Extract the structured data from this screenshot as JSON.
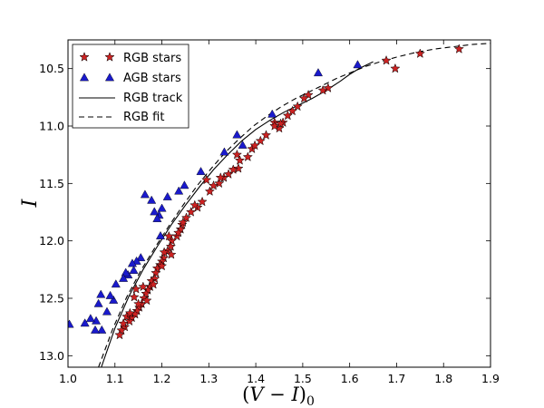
{
  "chart_data": {
    "type": "scatter",
    "xlabel_parts": [
      "(",
      "V",
      " − ",
      "I",
      ")",
      "0"
    ],
    "ylabel": "I",
    "xlim": [
      1.0,
      1.9
    ],
    "ylim": [
      10.25,
      13.1
    ],
    "y_inverted": true,
    "xticks": [
      1.0,
      1.1,
      1.2,
      1.3,
      1.4,
      1.5,
      1.6,
      1.7,
      1.8,
      1.9
    ],
    "xtick_labels": [
      "1.0",
      "1.1",
      "1.2",
      "1.3",
      "1.4",
      "1.5",
      "1.6",
      "1.7",
      "1.8",
      "1.9"
    ],
    "yticks": [
      10.5,
      11.0,
      11.5,
      12.0,
      12.5,
      13.0
    ],
    "ytick_labels": [
      "10.5",
      "11.0",
      "11.5",
      "12.0",
      "12.5",
      "13.0"
    ],
    "legend_position": "top-left",
    "legend": [
      {
        "label": "RGB stars",
        "marker": "star"
      },
      {
        "label": "AGB stars",
        "marker": "triangle"
      },
      {
        "label": "RGB track",
        "marker": "solid-line"
      },
      {
        "label": "RGB fit",
        "marker": "dashed-line"
      }
    ],
    "series": [
      {
        "name": "RGB stars",
        "kind": "scatter",
        "marker": "star",
        "color": "#cc2222",
        "points": [
          [
            1.833,
            10.33
          ],
          [
            1.75,
            10.37
          ],
          [
            1.697,
            10.5
          ],
          [
            1.678,
            10.43
          ],
          [
            1.554,
            10.67
          ],
          [
            1.543,
            10.69
          ],
          [
            1.512,
            10.73
          ],
          [
            1.503,
            10.76
          ],
          [
            1.489,
            10.83
          ],
          [
            1.478,
            10.87
          ],
          [
            1.468,
            10.91
          ],
          [
            1.458,
            10.97
          ],
          [
            1.45,
            11.02
          ],
          [
            1.44,
            10.97
          ],
          [
            1.44,
            11.0
          ],
          [
            1.422,
            11.08
          ],
          [
            1.41,
            11.13
          ],
          [
            1.392,
            11.2
          ],
          [
            1.383,
            11.27
          ],
          [
            1.36,
            11.25
          ],
          [
            1.366,
            11.3
          ],
          [
            1.363,
            11.37
          ],
          [
            1.342,
            11.42
          ],
          [
            1.332,
            11.45
          ],
          [
            1.322,
            11.5
          ],
          [
            1.325,
            11.45
          ],
          [
            1.302,
            11.57
          ],
          [
            1.295,
            11.47
          ],
          [
            1.286,
            11.66
          ],
          [
            1.276,
            11.71
          ],
          [
            1.262,
            11.75
          ],
          [
            1.252,
            11.8
          ],
          [
            1.243,
            11.86
          ],
          [
            1.24,
            11.9
          ],
          [
            1.232,
            11.96
          ],
          [
            1.221,
            12.0
          ],
          [
            1.219,
            12.05
          ],
          [
            1.212,
            12.09
          ],
          [
            1.204,
            12.15
          ],
          [
            1.2,
            12.18
          ],
          [
            1.196,
            12.21
          ],
          [
            1.19,
            12.24
          ],
          [
            1.187,
            12.28
          ],
          [
            1.185,
            12.33
          ],
          [
            1.178,
            12.35
          ],
          [
            1.175,
            12.4
          ],
          [
            1.17,
            12.43
          ],
          [
            1.166,
            12.46
          ],
          [
            1.162,
            12.5
          ],
          [
            1.157,
            12.55
          ],
          [
            1.152,
            12.58
          ],
          [
            1.147,
            12.61
          ],
          [
            1.143,
            12.64
          ],
          [
            1.141,
            12.49
          ],
          [
            1.136,
            12.67
          ],
          [
            1.131,
            12.7
          ],
          [
            1.125,
            12.66
          ],
          [
            1.121,
            12.75
          ],
          [
            1.114,
            12.78
          ],
          [
            1.11,
            12.82
          ],
          [
            1.145,
            12.42
          ],
          [
            1.16,
            12.4
          ],
          [
            1.168,
            12.52
          ],
          [
            1.205,
            12.1
          ],
          [
            1.215,
            11.96
          ],
          [
            1.235,
            11.93
          ],
          [
            1.22,
            12.12
          ],
          [
            1.182,
            12.38
          ],
          [
            1.15,
            12.55
          ],
          [
            1.132,
            12.63
          ],
          [
            1.118,
            12.72
          ],
          [
            1.2,
            12.22
          ],
          [
            1.245,
            11.84
          ],
          [
            1.27,
            11.69
          ],
          [
            1.31,
            11.52
          ],
          [
            1.352,
            11.38
          ],
          [
            1.398,
            11.17
          ],
          [
            1.453,
            10.98
          ]
        ]
      },
      {
        "name": "AGB stars",
        "kind": "scatter",
        "marker": "triangle",
        "color": "#1a1acc",
        "points": [
          [
            1.617,
            10.47
          ],
          [
            1.533,
            10.54
          ],
          [
            1.435,
            10.9
          ],
          [
            1.372,
            11.17
          ],
          [
            1.36,
            11.08
          ],
          [
            1.333,
            11.23
          ],
          [
            1.283,
            11.4
          ],
          [
            1.248,
            11.52
          ],
          [
            1.236,
            11.57
          ],
          [
            1.212,
            11.62
          ],
          [
            1.2,
            11.72
          ],
          [
            1.194,
            11.78
          ],
          [
            1.184,
            11.75
          ],
          [
            1.178,
            11.65
          ],
          [
            1.164,
            11.6
          ],
          [
            1.19,
            11.81
          ],
          [
            1.197,
            11.96
          ],
          [
            1.155,
            12.15
          ],
          [
            1.146,
            12.18
          ],
          [
            1.137,
            12.2
          ],
          [
            1.14,
            12.26
          ],
          [
            1.128,
            12.3
          ],
          [
            1.123,
            12.28
          ],
          [
            1.118,
            12.33
          ],
          [
            1.102,
            12.38
          ],
          [
            1.097,
            12.52
          ],
          [
            1.09,
            12.48
          ],
          [
            1.083,
            12.62
          ],
          [
            1.07,
            12.47
          ],
          [
            1.065,
            12.55
          ],
          [
            1.06,
            12.7
          ],
          [
            1.048,
            12.68
          ],
          [
            1.072,
            12.78
          ],
          [
            1.058,
            12.78
          ],
          [
            1.036,
            12.72
          ],
          [
            1.003,
            12.73
          ]
        ]
      },
      {
        "name": "RGB track",
        "kind": "line",
        "style": "solid",
        "color": "#000000",
        "points": [
          [
            1.071,
            13.1
          ],
          [
            1.1,
            12.76
          ],
          [
            1.13,
            12.48
          ],
          [
            1.16,
            12.25
          ],
          [
            1.19,
            12.05
          ],
          [
            1.22,
            11.86
          ],
          [
            1.25,
            11.69
          ],
          [
            1.28,
            11.53
          ],
          [
            1.31,
            11.38
          ],
          [
            1.34,
            11.25
          ],
          [
            1.37,
            11.13
          ],
          [
            1.4,
            11.03
          ],
          [
            1.43,
            10.95
          ],
          [
            1.46,
            10.88
          ],
          [
            1.49,
            10.82
          ],
          [
            1.52,
            10.76
          ],
          [
            1.55,
            10.69
          ],
          [
            1.58,
            10.61
          ],
          [
            1.6,
            10.55
          ],
          [
            1.62,
            10.5
          ],
          [
            1.65,
            10.44
          ]
        ]
      },
      {
        "name": "RGB fit",
        "kind": "line",
        "style": "dashed",
        "color": "#000000",
        "points": [
          [
            1.065,
            13.1
          ],
          [
            1.095,
            12.77
          ],
          [
            1.125,
            12.49
          ],
          [
            1.155,
            12.26
          ],
          [
            1.185,
            12.06
          ],
          [
            1.215,
            11.87
          ],
          [
            1.245,
            11.69
          ],
          [
            1.275,
            11.52
          ],
          [
            1.305,
            11.37
          ],
          [
            1.335,
            11.23
          ],
          [
            1.365,
            11.11
          ],
          [
            1.395,
            11.0
          ],
          [
            1.425,
            10.91
          ],
          [
            1.455,
            10.83
          ],
          [
            1.485,
            10.76
          ],
          [
            1.515,
            10.7
          ],
          [
            1.545,
            10.64
          ],
          [
            1.575,
            10.58
          ],
          [
            1.605,
            10.53
          ],
          [
            1.635,
            10.48
          ],
          [
            1.665,
            10.44
          ],
          [
            1.7,
            10.4
          ],
          [
            1.74,
            10.36
          ],
          [
            1.78,
            10.33
          ],
          [
            1.82,
            10.31
          ],
          [
            1.86,
            10.29
          ],
          [
            1.9,
            10.28
          ]
        ]
      }
    ]
  }
}
